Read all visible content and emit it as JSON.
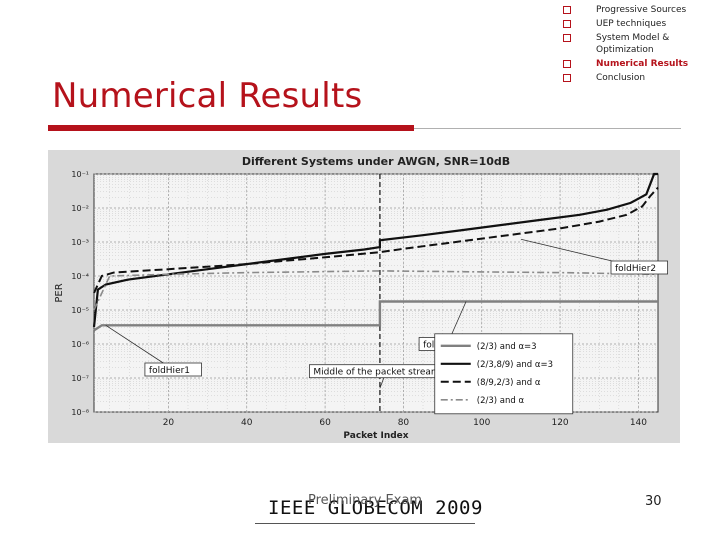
{
  "slide": {
    "title": "Numerical Results",
    "footer": "IEEE GLOBECOM 2009",
    "footer_overlay": "Preliminary Exam",
    "page_number": "30"
  },
  "outline": [
    {
      "label": "Progressive Sources",
      "active": false
    },
    {
      "label": "UEP techniques",
      "active": false
    },
    {
      "label": "System Model & Optimization",
      "active": false
    },
    {
      "label": "Numerical Results",
      "active": true
    },
    {
      "label": "Conclusion",
      "active": false
    }
  ],
  "chart_data": {
    "type": "line",
    "title": "Different Systems under AWGN, SNR=10dB",
    "xlabel": "Packet Index",
    "ylabel": "PER",
    "xlim": [
      1,
      145
    ],
    "ylim_log10": [
      -8,
      -1
    ],
    "x_ticks": [
      20,
      40,
      60,
      80,
      100,
      120,
      140
    ],
    "y_ticks": [
      "10⁻¹",
      "10⁻²",
      "10⁻³",
      "10⁻⁴",
      "10⁻⁵",
      "10⁻⁶",
      "10⁻⁷",
      "10⁻⁸"
    ],
    "grid": true,
    "legend_position": "bottom-right",
    "series": [
      {
        "name": "(2/3) and α=3",
        "color": "#808080",
        "style": "solid",
        "width": 2.4,
        "points": [
          [
            1,
            -5.6
          ],
          [
            3,
            -5.45
          ],
          [
            5,
            -5.45
          ],
          [
            74,
            -5.45
          ],
          [
            74,
            -4.75
          ],
          [
            145,
            -4.75
          ]
        ]
      },
      {
        "name": "(2/3,8/9) and α=3",
        "color": "#111111",
        "style": "solid",
        "width": 2.2,
        "points": [
          [
            1,
            -5.5
          ],
          [
            2,
            -4.4
          ],
          [
            4,
            -4.25
          ],
          [
            10,
            -4.1
          ],
          [
            20,
            -3.95
          ],
          [
            30,
            -3.8
          ],
          [
            40,
            -3.65
          ],
          [
            50,
            -3.5
          ],
          [
            60,
            -3.35
          ],
          [
            70,
            -3.22
          ],
          [
            74,
            -3.15
          ],
          [
            74,
            -2.95
          ],
          [
            85,
            -2.8
          ],
          [
            95,
            -2.65
          ],
          [
            105,
            -2.5
          ],
          [
            115,
            -2.35
          ],
          [
            125,
            -2.2
          ],
          [
            132,
            -2.05
          ],
          [
            138,
            -1.85
          ],
          [
            142,
            -1.6
          ],
          [
            143,
            -1.3
          ],
          [
            144,
            -1.0
          ],
          [
            145,
            -1.0
          ]
        ]
      },
      {
        "name": "(8/9,2/3) and α",
        "color": "#111111",
        "style": "dash",
        "width": 2.0,
        "points": [
          [
            1,
            -4.5
          ],
          [
            3,
            -4.0
          ],
          [
            6,
            -3.9
          ],
          [
            20,
            -3.8
          ],
          [
            40,
            -3.65
          ],
          [
            60,
            -3.45
          ],
          [
            74,
            -3.3
          ],
          [
            80,
            -3.2
          ],
          [
            90,
            -3.05
          ],
          [
            100,
            -2.9
          ],
          [
            110,
            -2.75
          ],
          [
            120,
            -2.6
          ],
          [
            130,
            -2.4
          ],
          [
            137,
            -2.2
          ],
          [
            141,
            -1.95
          ],
          [
            143,
            -1.65
          ],
          [
            145,
            -1.4
          ]
        ]
      },
      {
        "name": "(2/3) and α",
        "color": "#8a8a8a",
        "style": "dashdot",
        "width": 1.6,
        "points": [
          [
            1,
            -5.0
          ],
          [
            5,
            -4.0
          ],
          [
            20,
            -3.95
          ],
          [
            40,
            -3.9
          ],
          [
            74,
            -3.85
          ],
          [
            100,
            -3.88
          ],
          [
            120,
            -3.9
          ],
          [
            145,
            -3.95
          ]
        ]
      }
    ],
    "midline_x": 74,
    "annotations": [
      {
        "id": "hier2",
        "text": "foldHier2",
        "box_x": 133,
        "box_y": -3.75,
        "arrow_to": [
          110,
          -2.92
        ]
      },
      {
        "id": "conv1",
        "text": "foldConv1",
        "box_x": 84,
        "box_y": -6.0,
        "arrow_to": [
          96,
          -4.75
        ]
      },
      {
        "id": "hier1",
        "text": "foldHier1",
        "box_x": 14,
        "box_y": -6.75,
        "arrow_to": [
          4,
          -5.45
        ]
      },
      {
        "id": "middle",
        "text": "Middle of the packet stream",
        "box_x": 56,
        "box_y": -6.8,
        "arrow_to": [
          74,
          -7.3
        ]
      }
    ],
    "legend": [
      {
        "label": "(2/3) and α=3",
        "series": 0
      },
      {
        "label": "(2/3,8/9) and α=3",
        "series": 1
      },
      {
        "label": "(8/9,2/3) and α",
        "series": 2
      },
      {
        "label": "(2/3) and α",
        "series": 3
      }
    ]
  }
}
